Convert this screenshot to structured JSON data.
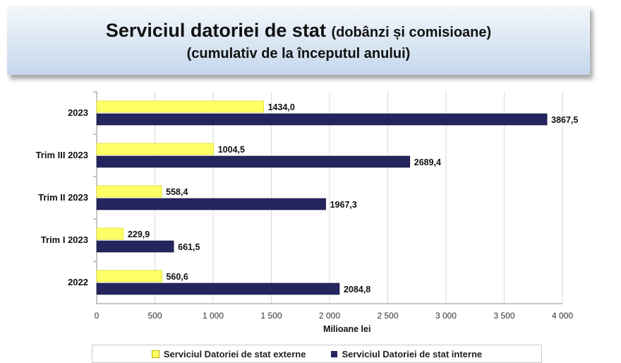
{
  "title": {
    "main": "Serviciul datoriei de stat",
    "main_sub": "(dobânzi și comisioane)",
    "line2": "(cumulativ de la începutul anului)"
  },
  "chart_data": {
    "type": "bar",
    "orientation": "horizontal",
    "categories": [
      "2023",
      "Trim III 2023",
      "Trim II 2023",
      "Trim I 2023",
      "2022"
    ],
    "series": [
      {
        "name": "Serviciul Datoriei de stat externe",
        "color": "#ffff66",
        "values": [
          1434.0,
          1004.5,
          558.4,
          229.9,
          560.6
        ],
        "labels": [
          "1434,0",
          "1004,5",
          "558,4",
          "229,9",
          "560,6"
        ]
      },
      {
        "name": "Serviciul Datoriei de stat interne",
        "color": "#24245e",
        "values": [
          3867.5,
          2689.4,
          1967.3,
          661.5,
          2084.8
        ],
        "labels": [
          "3867,5",
          "2689,4",
          "1967,3",
          "661,5",
          "2084,8"
        ]
      }
    ],
    "xlim": [
      0,
      4000
    ],
    "x_ticks": [
      0,
      500,
      1000,
      1500,
      2000,
      2500,
      3000,
      3500,
      4000
    ],
    "x_tick_labels": [
      "0",
      "500",
      "1 000",
      "1 500",
      "2 000",
      "2 500",
      "3 000",
      "3 500",
      "4 000"
    ],
    "xlabel": "Milioane lei",
    "grid": true,
    "legend_position": "bottom"
  }
}
